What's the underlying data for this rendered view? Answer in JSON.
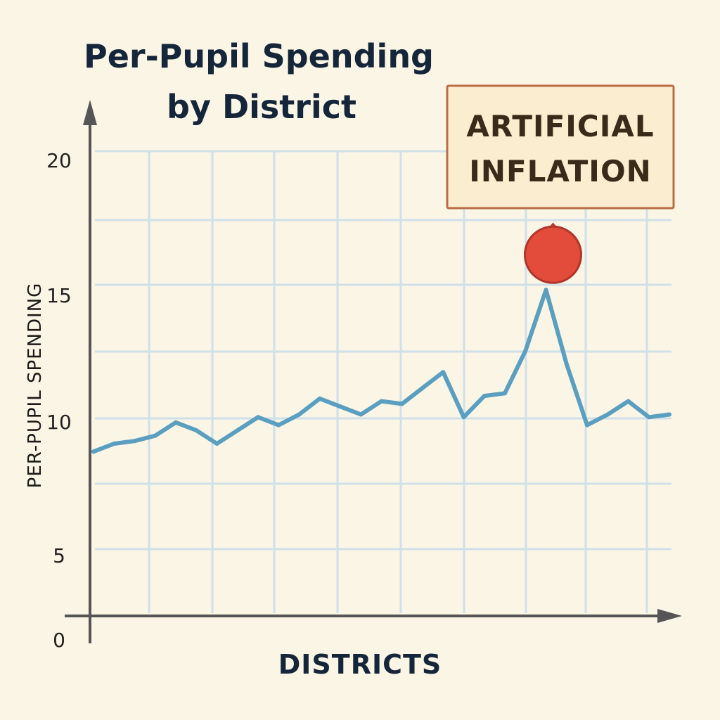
{
  "chart_data": {
    "type": "line",
    "title_lines": [
      "Per-Pupil Spending",
      "by District"
    ],
    "xlabel": "DISTRICTS",
    "ylabel": "PER-PUPIL SPENDING",
    "yticks": [
      "0",
      "5",
      "10",
      "15",
      "20"
    ],
    "ylim": [
      0,
      20
    ],
    "grid": true,
    "series": [
      {
        "color": "#5b9fc0",
        "x": [
          0,
          1,
          2,
          3,
          4,
          5,
          6,
          7,
          8,
          9,
          10,
          11,
          12,
          13,
          14,
          15,
          16,
          17,
          18,
          19,
          20,
          21,
          22,
          23,
          24,
          25,
          26,
          27,
          28
        ],
        "values": [
          6.2,
          6.5,
          6.6,
          6.8,
          7.3,
          7.0,
          6.5,
          7.0,
          7.5,
          7.2,
          7.6,
          8.2,
          7.9,
          7.6,
          8.1,
          8.0,
          8.6,
          9.2,
          7.5,
          8.3,
          8.4,
          10.0,
          12.3,
          9.5,
          7.2,
          7.6,
          8.1,
          7.5,
          7.6
        ]
      }
    ],
    "highlight": {
      "index": 22,
      "label": "ARTIFICIAL INFLATION",
      "label_lines": [
        "ARTIFICIAL",
        "INFLATION"
      ],
      "color": "#e34b3a",
      "box_color": "#fbedcf",
      "box_border": "#b96d45"
    }
  }
}
